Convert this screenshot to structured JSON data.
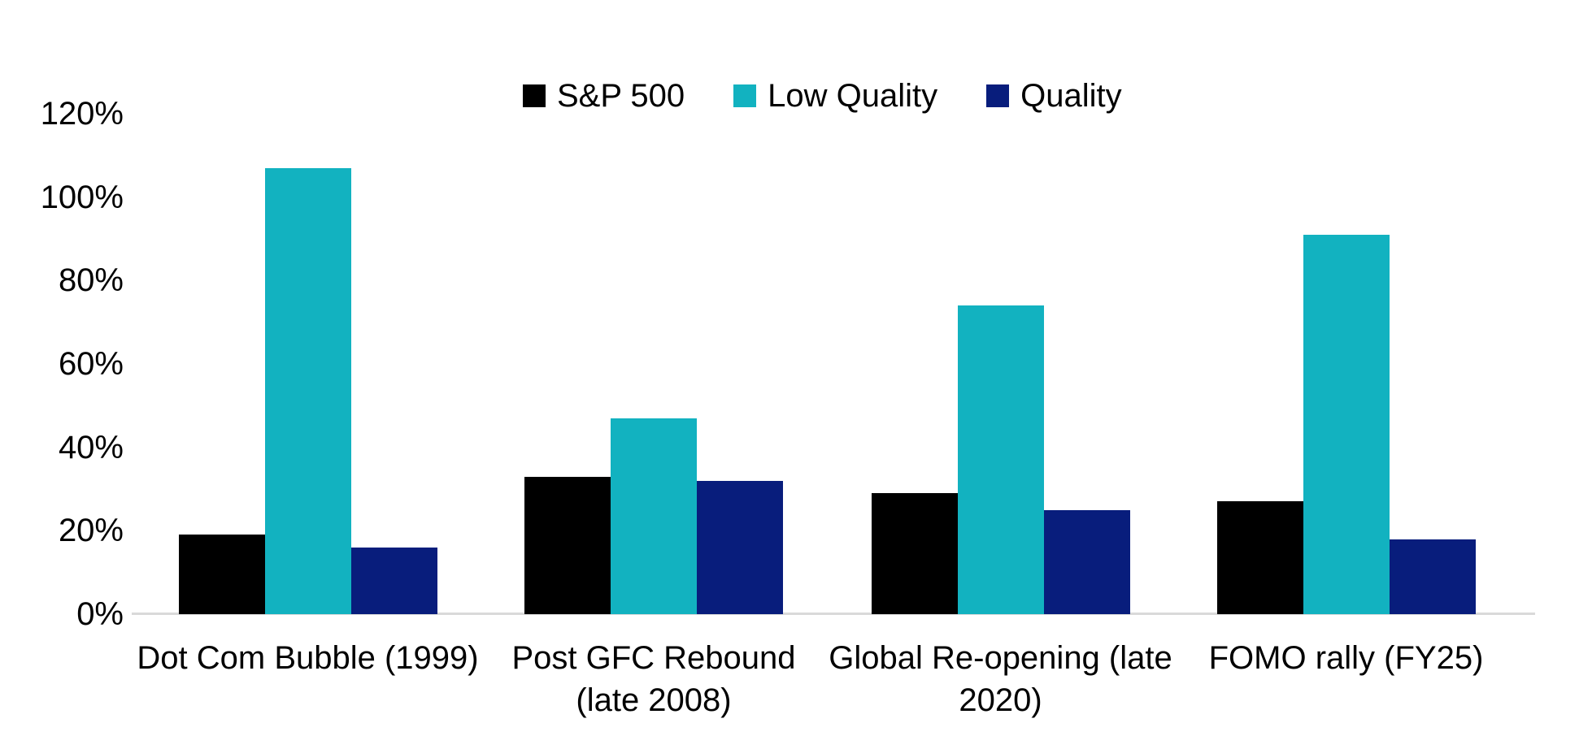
{
  "chart_data": {
    "type": "bar",
    "title": "",
    "xlabel": "",
    "ylabel": "",
    "categories": [
      "Dot Com Bubble (1999)",
      "Post GFC Rebound\n(late 2008)",
      "Global Re-opening (late\n2020)",
      "FOMO rally (FY25)"
    ],
    "series": [
      {
        "name": "S&P 500",
        "color": "#000000",
        "values": [
          19,
          33,
          29,
          27
        ]
      },
      {
        "name": "Low Quality",
        "color": "#12B2C0",
        "values": [
          107,
          47,
          74,
          91
        ]
      },
      {
        "name": "Quality",
        "color": "#081D7C",
        "values": [
          16,
          32,
          25,
          18
        ]
      }
    ],
    "unit": "%",
    "ylim": [
      0,
      120
    ],
    "ytick_step": 20,
    "yticks": [
      "0%",
      "20%",
      "40%",
      "60%",
      "80%",
      "100%",
      "120%"
    ],
    "legend_position": "top",
    "grid": false,
    "axis_line_color": "#D9D9D9"
  }
}
